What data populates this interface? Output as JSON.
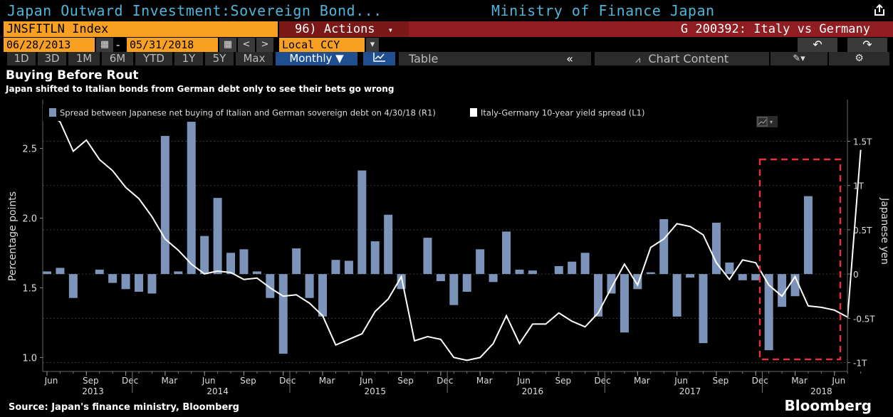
{
  "header": {
    "title": "Japan Outward Investment:Sovereign Bond...",
    "source_org": "Ministry of Finance Japan"
  },
  "toolbar": {
    "ticker": "JNSFITLN Index",
    "actions_label": "96) Actions",
    "actions_caret": "▾",
    "compare_label": "G 200392: Italy vs Germany",
    "start_date": "06/28/2013",
    "end_date": "05/31/2018",
    "date_separator": "-",
    "prev_label": "<",
    "next_label": ">",
    "currency": "Local CCY",
    "currency_caret": "▾",
    "undo_label": "↶",
    "redo_label": "↷",
    "ranges": [
      "1D",
      "3D",
      "1M",
      "6M",
      "YTD",
      "1Y",
      "5Y",
      "Max"
    ],
    "frequency": "Monthly ▼",
    "table_label": "Table",
    "collapse_label": "«",
    "chart_content_label": "Chart Content",
    "edit_label": "✎▾",
    "gear_label": "⚙"
  },
  "footer": {
    "source": "Source: Japan's finance ministry, Bloomberg",
    "brand": "Bloomberg"
  },
  "colors": {
    "bar": "#7d94ba",
    "line": "#ffffff",
    "highlight_box": "#e8303a",
    "grid": "#3a3a3a"
  },
  "chart_data": {
    "type": "bar",
    "title": "Buying Before Rout",
    "subtitle": "Japan shifted to Italian bonds from German debt only to see their bets go wrong",
    "ylabel_left": "Percentage points",
    "ylabel_right": "Japanese yen",
    "left_axis": {
      "ticks": [
        "2.5",
        "2.0",
        "1.5",
        "1.0"
      ],
      "values": [
        2.5,
        2.0,
        1.5,
        1.0
      ],
      "range": [
        0.9,
        2.85
      ]
    },
    "right_axis": {
      "ticks": [
        "1.5T",
        "1T",
        "0.5T",
        "0",
        "-0.5T",
        "-1T"
      ],
      "values": [
        1.5,
        1.0,
        0.5,
        0,
        -0.5,
        -1.0
      ],
      "range": [
        -1.1,
        1.97
      ]
    },
    "x_month_labels": [
      "Jun",
      "Sep",
      "Dec",
      "Mar",
      "Jun",
      "Sep",
      "Dec",
      "Mar",
      "Jun",
      "Sep",
      "Dec",
      "Mar",
      "Jun",
      "Sep",
      "Dec",
      "Mar",
      "Jun",
      "Sep",
      "Dec",
      "Mar",
      "Jun"
    ],
    "x_year_labels": [
      "2013",
      "2014",
      "2015",
      "2016",
      "2017",
      "2018"
    ],
    "legend": [
      "Spread between Japanese net buying of Italian and German sovereign debt on 4/30/18 (R1)",
      "Italy-Germany 10-year yield spread (L1)"
    ],
    "series": [
      {
        "name": "Spread between Japanese net buying of Italian and German sovereign debt on 4/30/18 (R1)",
        "axis": "right",
        "style": "bar",
        "values": [
          0.03,
          0.07,
          -0.27,
          0,
          0.05,
          -0.1,
          -0.17,
          -0.2,
          -0.22,
          1.56,
          0.03,
          1.72,
          0.43,
          0.86,
          0.24,
          0.28,
          0.03,
          -0.27,
          -0.9,
          0.29,
          -0.27,
          -0.48,
          0.16,
          0.15,
          1.17,
          0.37,
          0.67,
          -0.17,
          0,
          0.41,
          -0.08,
          -0.35,
          -0.2,
          0.28,
          -0.09,
          0.48,
          0.05,
          0.04,
          0,
          0.09,
          0.14,
          0.24,
          -0.48,
          -0.22,
          -0.66,
          -0.17,
          0.02,
          0.62,
          -0.48,
          -0.04,
          -0.78,
          0.58,
          0.13,
          -0.07,
          -0.07,
          -0.86,
          -0.37,
          -0.25,
          0.88
        ]
      },
      {
        "name": "Italy-Germany 10-year yield spread (L1)",
        "axis": "left",
        "style": "line",
        "values": [
          2.76,
          2.69,
          2.48,
          2.56,
          2.42,
          2.34,
          2.22,
          2.14,
          2.01,
          1.85,
          1.77,
          1.67,
          1.6,
          1.62,
          1.61,
          1.56,
          1.57,
          1.5,
          1.44,
          1.45,
          1.39,
          1.3,
          1.09,
          1.13,
          1.17,
          1.33,
          1.42,
          1.58,
          1.12,
          1.15,
          1.13,
          1.0,
          0.98,
          1.0,
          1.1,
          1.3,
          1.1,
          1.24,
          1.24,
          1.32,
          1.26,
          1.22,
          1.32,
          1.5,
          1.67,
          1.52,
          1.79,
          1.85,
          1.96,
          1.94,
          1.88,
          1.68,
          1.56,
          1.7,
          1.68,
          1.52,
          1.44,
          1.58,
          1.37,
          1.36,
          1.34,
          1.29,
          2.49
        ]
      }
    ]
  }
}
